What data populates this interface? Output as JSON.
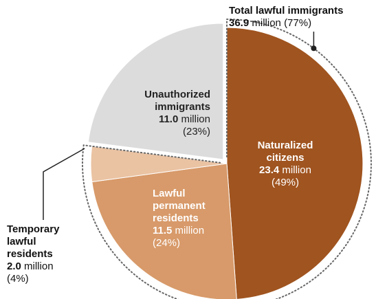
{
  "chart_data": {
    "type": "pie",
    "unit": "million",
    "slices": [
      {
        "name_lines": [
          "Naturalized",
          "citizens"
        ],
        "value": 23.4,
        "value_text": "23.4",
        "percent_text": "(49%)",
        "color": "#a0541f"
      },
      {
        "name_lines": [
          "Lawful",
          "permanent",
          "residents"
        ],
        "value": 11.5,
        "value_text": "11.5",
        "percent_text": "(24%)",
        "color": "#d89a6a"
      },
      {
        "name_lines": [
          "Temporary",
          "lawful",
          "residents"
        ],
        "value": 2.0,
        "value_text": "2.0",
        "percent_text": "(4%)",
        "color": "#eac3a3"
      },
      {
        "name_lines": [
          "Unauthorized",
          "immigrants"
        ],
        "value": 11.0,
        "value_text": "11.0",
        "percent_text": "(23%)",
        "color": "#dcdcdc"
      }
    ],
    "group_annotation": {
      "title": "Total lawful immigrants",
      "value_text": "36.9",
      "unit": "million",
      "percent_text": "(77%)"
    }
  }
}
